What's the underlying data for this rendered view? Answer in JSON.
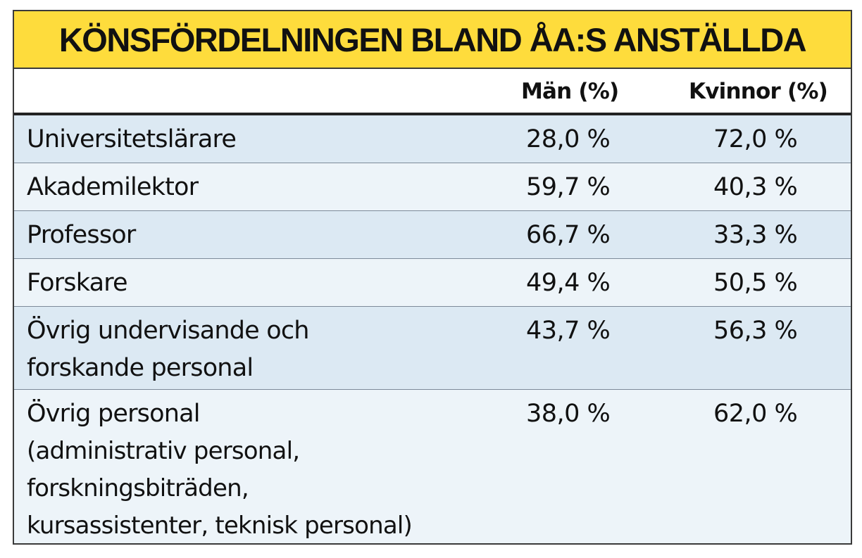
{
  "chart_data": {
    "type": "table",
    "title": "KÖNSFÖRDELNINGEN BLAND ÅA:S ANSTÄLLDA",
    "columns": [
      "",
      "Män (%)",
      "Kvinnor (%)"
    ],
    "rows": [
      {
        "label": "Universitetslärare",
        "men": "28,0 %",
        "women": "72,0 %"
      },
      {
        "label": "Akademilektor",
        "men": "59,7 %",
        "women": "40,3 %"
      },
      {
        "label": "Professor",
        "men": "66,7 %",
        "women": "33,3 %"
      },
      {
        "label": "Forskare",
        "men": "49,4 %",
        "women": "50,5 %"
      },
      {
        "label": "Övrig undervisande och",
        "label2": "forskande personal",
        "men": "43,7 %",
        "women": "56,3 %"
      },
      {
        "label": "Övrig personal",
        "label2": "(administrativ personal,",
        "label3": "forskningsbiträden,",
        "label4": "kursassistenter, teknisk personal)",
        "men": "38,0 %",
        "women": "62,0 %"
      }
    ]
  },
  "colors": {
    "title_background": "#fedc3c",
    "row_shaded": "#dce9f3",
    "row_light": "#edf4f9",
    "border": "#3a3a3a"
  }
}
